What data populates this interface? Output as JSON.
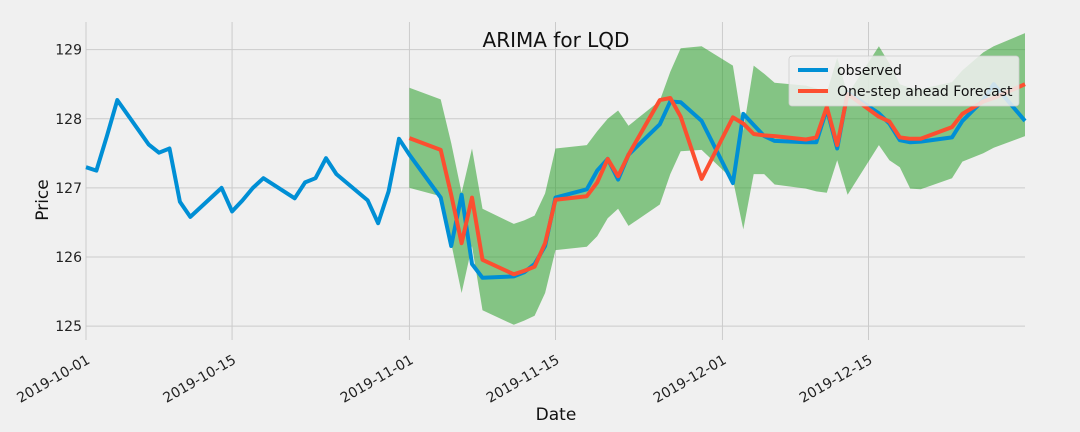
{
  "chart_data": {
    "type": "line",
    "title": "ARIMA for LQD",
    "xlabel": "Date",
    "ylabel": "Price",
    "xlim": [
      "2019-10-01",
      "2019-12-30"
    ],
    "ylim": [
      124.8,
      129.4
    ],
    "x_ticks": [
      "2019-10-01",
      "2019-10-15",
      "2019-11-01",
      "2019-11-15",
      "2019-12-01",
      "2019-12-15"
    ],
    "y_ticks": [
      125,
      126,
      127,
      128,
      129
    ],
    "grid": true,
    "legend": "top-right",
    "colors": {
      "observed": "#008fd5",
      "forecast": "#fc4f30",
      "band": "#2ca02c",
      "background": "#f0f0f0",
      "grid": "#cbcbcb"
    },
    "series": [
      {
        "name": "observed",
        "x": [
          "2019-10-01",
          "2019-10-02",
          "2019-10-03",
          "2019-10-04",
          "2019-10-07",
          "2019-10-08",
          "2019-10-09",
          "2019-10-10",
          "2019-10-11",
          "2019-10-14",
          "2019-10-15",
          "2019-10-16",
          "2019-10-17",
          "2019-10-18",
          "2019-10-21",
          "2019-10-22",
          "2019-10-23",
          "2019-10-24",
          "2019-10-25",
          "2019-10-28",
          "2019-10-29",
          "2019-10-30",
          "2019-10-31",
          "2019-11-01",
          "2019-11-04",
          "2019-11-05",
          "2019-11-06",
          "2019-11-07",
          "2019-11-08",
          "2019-11-11",
          "2019-11-12",
          "2019-11-13",
          "2019-11-14",
          "2019-11-15",
          "2019-11-18",
          "2019-11-19",
          "2019-11-20",
          "2019-11-21",
          "2019-11-22",
          "2019-11-25",
          "2019-11-26",
          "2019-11-27",
          "2019-11-29",
          "2019-12-02",
          "2019-12-03",
          "2019-12-04",
          "2019-12-05",
          "2019-12-06",
          "2019-12-09",
          "2019-12-10",
          "2019-12-11",
          "2019-12-12",
          "2019-12-13",
          "2019-12-16",
          "2019-12-17",
          "2019-12-18",
          "2019-12-19",
          "2019-12-20",
          "2019-12-23",
          "2019-12-24",
          "2019-12-26",
          "2019-12-27",
          "2019-12-30"
        ],
        "values": [
          127.3,
          127.25,
          127.75,
          128.27,
          127.63,
          127.51,
          127.57,
          126.8,
          126.58,
          127.0,
          126.66,
          126.82,
          127.0,
          127.14,
          126.85,
          127.08,
          127.14,
          127.43,
          127.2,
          126.82,
          126.49,
          126.95,
          127.71,
          127.48,
          126.86,
          126.16,
          126.9,
          125.9,
          125.7,
          125.72,
          125.78,
          125.9,
          126.16,
          126.86,
          126.98,
          127.25,
          127.42,
          127.12,
          127.48,
          127.92,
          128.25,
          128.24,
          127.97,
          127.07,
          128.07,
          127.91,
          127.75,
          127.68,
          127.66,
          127.66,
          128.14,
          127.57,
          128.38,
          128.08,
          127.93,
          127.69,
          127.66,
          127.67,
          127.73,
          127.97,
          128.27,
          128.5,
          127.97
        ]
      },
      {
        "name": "One-step ahead Forecast",
        "x": [
          "2019-11-01",
          "2019-11-04",
          "2019-11-05",
          "2019-11-06",
          "2019-11-07",
          "2019-11-08",
          "2019-11-11",
          "2019-11-12",
          "2019-11-13",
          "2019-11-14",
          "2019-11-15",
          "2019-11-18",
          "2019-11-19",
          "2019-11-20",
          "2019-11-21",
          "2019-11-22",
          "2019-11-25",
          "2019-11-26",
          "2019-11-27",
          "2019-11-29",
          "2019-12-02",
          "2019-12-03",
          "2019-12-04",
          "2019-12-05",
          "2019-12-06",
          "2019-12-09",
          "2019-12-10",
          "2019-12-11",
          "2019-12-12",
          "2019-12-13",
          "2019-12-16",
          "2019-12-17",
          "2019-12-18",
          "2019-12-19",
          "2019-12-20",
          "2019-12-23",
          "2019-12-24",
          "2019-12-26",
          "2019-12-27",
          "2019-12-30"
        ],
        "values": [
          127.72,
          127.55,
          126.9,
          126.2,
          126.86,
          125.96,
          125.75,
          125.8,
          125.86,
          126.2,
          126.83,
          126.88,
          127.08,
          127.42,
          127.17,
          127.48,
          128.27,
          128.3,
          128.03,
          127.13,
          128.02,
          127.93,
          127.78,
          127.76,
          127.75,
          127.7,
          127.73,
          128.17,
          127.62,
          128.36,
          128.03,
          127.96,
          127.73,
          127.71,
          127.71,
          127.88,
          128.07,
          128.25,
          128.3,
          128.5
        ]
      }
    ],
    "confidence_band": {
      "x": [
        "2019-11-01",
        "2019-11-04",
        "2019-11-05",
        "2019-11-06",
        "2019-11-07",
        "2019-11-08",
        "2019-11-11",
        "2019-11-12",
        "2019-11-13",
        "2019-11-14",
        "2019-11-15",
        "2019-11-18",
        "2019-11-19",
        "2019-11-20",
        "2019-11-21",
        "2019-11-22",
        "2019-11-25",
        "2019-11-26",
        "2019-11-27",
        "2019-11-29",
        "2019-12-02",
        "2019-12-03",
        "2019-12-04",
        "2019-12-05",
        "2019-12-06",
        "2019-12-09",
        "2019-12-10",
        "2019-12-11",
        "2019-12-12",
        "2019-12-13",
        "2019-12-16",
        "2019-12-17",
        "2019-12-18",
        "2019-12-19",
        "2019-12-20",
        "2019-12-23",
        "2019-12-24",
        "2019-12-26",
        "2019-12-27",
        "2019-12-30"
      ],
      "lower": [
        127.0,
        126.88,
        126.2,
        125.48,
        126.16,
        125.23,
        125.02,
        125.08,
        125.15,
        125.48,
        126.1,
        126.15,
        126.3,
        126.56,
        126.7,
        126.45,
        126.76,
        127.2,
        127.53,
        127.55,
        127.12,
        126.4,
        127.2,
        127.2,
        127.05,
        126.99,
        126.95,
        126.93,
        127.4,
        126.9,
        127.62,
        127.4,
        127.3,
        126.99,
        126.98,
        127.14,
        127.38,
        127.5,
        127.58,
        127.75
      ],
      "upper": [
        128.45,
        128.28,
        127.65,
        126.93,
        127.57,
        126.7,
        126.48,
        126.53,
        126.6,
        126.92,
        127.57,
        127.62,
        127.82,
        128.0,
        128.12,
        127.9,
        128.26,
        128.68,
        129.02,
        129.05,
        128.77,
        127.83,
        128.77,
        128.65,
        128.52,
        128.48,
        128.44,
        128.38,
        128.88,
        128.35,
        129.05,
        128.8,
        128.5,
        128.45,
        128.43,
        128.53,
        128.7,
        128.96,
        129.05,
        129.24
      ]
    }
  }
}
